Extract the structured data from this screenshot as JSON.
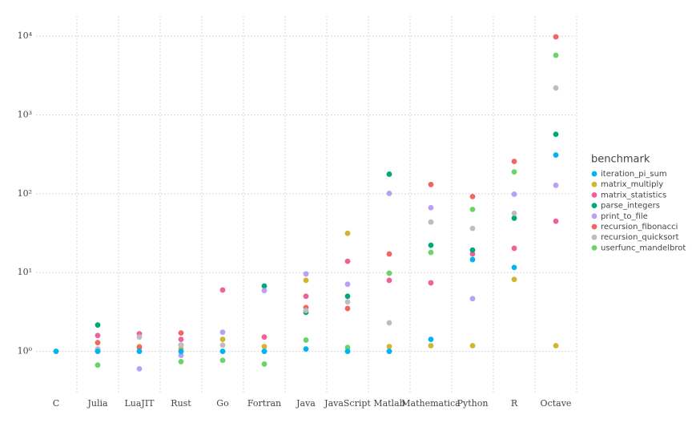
{
  "chart_data": {
    "type": "scatter",
    "categories": [
      "C",
      "Julia",
      "LuaJIT",
      "Rust",
      "Go",
      "Fortran",
      "Java",
      "JavaScript",
      "Matlab",
      "Mathematica",
      "Python",
      "R",
      "Octave"
    ],
    "legend_title": "benchmark",
    "legend_position": "right",
    "ylog": true,
    "grid": true,
    "ylim": [
      0.3,
      18000
    ],
    "yticks": [
      {
        "value": 1,
        "label": "10⁰"
      },
      {
        "value": 10,
        "label": "10¹"
      },
      {
        "value": 100,
        "label": "10²"
      },
      {
        "value": 1000,
        "label": "10³"
      },
      {
        "value": 10000,
        "label": "10⁴"
      }
    ],
    "series": [
      {
        "name": "iteration_pi_sum",
        "color": "#00b4f0",
        "values": [
          1.0,
          1.0,
          1.0,
          1.0,
          1.0,
          1.0,
          1.07,
          1.0,
          1.0,
          1.42,
          14.6,
          11.6,
          310
        ]
      },
      {
        "name": "matrix_multiply",
        "color": "#d1b52e",
        "values": [
          null,
          1.05,
          1.15,
          1.07,
          1.42,
          1.15,
          7.96,
          31.5,
          1.15,
          1.18,
          1.18,
          8.17,
          1.18
        ]
      },
      {
        "name": "matrix_statistics",
        "color": "#f0609c",
        "values": [
          null,
          1.59,
          1.67,
          1.42,
          6.0,
          1.52,
          5.0,
          13.9,
          7.96,
          7.4,
          17.2,
          20.3,
          44.8
        ]
      },
      {
        "name": "parse_integers",
        "color": "#00a87a",
        "values": [
          null,
          2.16,
          null,
          1.2,
          null,
          6.75,
          3.13,
          5.0,
          177,
          22.2,
          19.3,
          49,
          568
        ]
      },
      {
        "name": "print_to_file",
        "color": "#b9a0f5",
        "values": [
          null,
          1.07,
          0.6,
          0.89,
          1.75,
          5.9,
          9.6,
          7.1,
          101,
          66.5,
          4.66,
          98.6,
          128
        ]
      },
      {
        "name": "recursion_fibonacci",
        "color": "#f0675e",
        "values": [
          null,
          1.29,
          1.12,
          1.71,
          null,
          null,
          3.6,
          3.5,
          17.2,
          131,
          92,
          257,
          9800
        ]
      },
      {
        "name": "recursion_quicksort",
        "color": "#bdbdbd",
        "values": [
          null,
          1.05,
          1.52,
          1.2,
          1.2,
          null,
          3.3,
          4.24,
          2.3,
          43.7,
          36.3,
          56.4,
          2200
        ]
      },
      {
        "name": "userfunc_mandelbrot",
        "color": "#6ad46a",
        "values": [
          null,
          0.67,
          null,
          0.74,
          0.77,
          0.69,
          1.39,
          1.12,
          9.8,
          18,
          63.3,
          189,
          5720
        ]
      }
    ]
  }
}
